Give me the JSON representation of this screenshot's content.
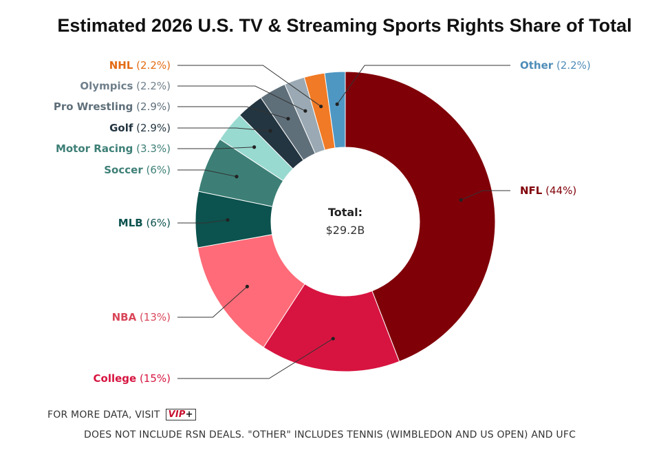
{
  "chart_data": {
    "type": "pie",
    "style": "donut",
    "title": "Estimated 2026 U.S. TV & Streaming Sports Rights Share of Total",
    "center_label": "Total:",
    "center_value": "$29.2B",
    "slices": [
      {
        "name": "NFL",
        "value": 44,
        "label": "(44%)",
        "color": "#800008",
        "text_color": "#800008"
      },
      {
        "name": "College",
        "value": 15,
        "label": "(15%)",
        "color": "#d71440",
        "text_color": "#d71440"
      },
      {
        "name": "NBA",
        "value": 13,
        "label": "(13%)",
        "color": "#ff6b78",
        "text_color": "#d9475a"
      },
      {
        "name": "MLB",
        "value": 6,
        "label": "(6%)",
        "color": "#0c524e",
        "text_color": "#0c524e"
      },
      {
        "name": "Soccer",
        "value": 6,
        "label": "(6%)",
        "color": "#3d7f76",
        "text_color": "#3d7f76"
      },
      {
        "name": "Motor Racing",
        "value": 3.3,
        "label": "(3.3%)",
        "color": "#98d9d0",
        "text_color": "#3d7f76"
      },
      {
        "name": "Golf",
        "value": 2.9,
        "label": "(2.9%)",
        "color": "#233540",
        "text_color": "#233540"
      },
      {
        "name": "Pro Wrestling",
        "value": 2.9,
        "label": "(2.9%)",
        "color": "#5f6f7a",
        "text_color": "#5f6f7a"
      },
      {
        "name": "Olympics",
        "value": 2.2,
        "label": "(2.2%)",
        "color": "#9aa9b3",
        "text_color": "#6f7f8a"
      },
      {
        "name": "NHL",
        "value": 2.2,
        "label": "(2.2%)",
        "color": "#f07a25",
        "text_color": "#e36c14"
      },
      {
        "name": "Other",
        "value": 2.2,
        "label": "(2.2%)",
        "color": "#4f97c3",
        "text_color": "#4f8db8"
      }
    ]
  },
  "footer": {
    "more_data": "FOR MORE DATA, VISIT",
    "vip_text": "VIP",
    "vip_plus": "+",
    "note": "DOES NOT INCLUDE RSN DEALS. \"OTHER\" INCLUDES TENNIS (WIMBLEDON AND US OPEN) AND UFC"
  }
}
